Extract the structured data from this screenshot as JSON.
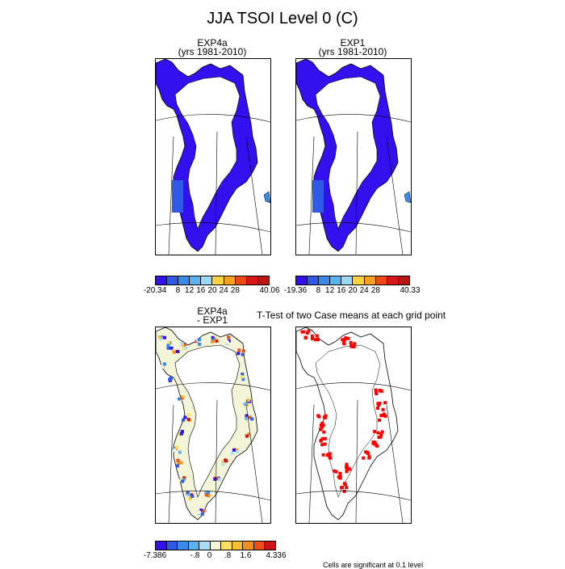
{
  "title": "JJA TSOI Level 0 (C)",
  "panels": {
    "exp4a": {
      "line1": "EXP4a",
      "line2": "(yrs 1981-2010)"
    },
    "exp1": {
      "line1": "EXP1",
      "line2": "(yrs 1981-2010)"
    },
    "diff": {
      "line1": "EXP4a",
      "line2": "- EXP1"
    },
    "ttest": {
      "title": "T-Test of two Case means at each grid point"
    }
  },
  "colorbars": {
    "exp4a": {
      "labels": [
        "-20.34",
        "8",
        "12",
        "16",
        "20",
        "24",
        "28",
        "40.06"
      ]
    },
    "exp1": {
      "labels": [
        "-19.36",
        "8",
        "12",
        "16",
        "20",
        "24",
        "28",
        "40.33"
      ]
    },
    "diff": {
      "labels": [
        "-7.386",
        "-.8",
        "0",
        ".8",
        "1.6",
        "4.336"
      ]
    }
  },
  "colors": {
    "abs_scale": [
      "#3311ee",
      "#2f5ae8",
      "#3a8ae8",
      "#58b4f0",
      "#9ad8f4",
      "#f8d040",
      "#f4a020",
      "#ee4a18",
      "#d81818",
      "#b81414"
    ],
    "diff_scale": [
      "#3311ee",
      "#2f5ae8",
      "#3a8ae8",
      "#58b4f0",
      "#a8def4",
      "#f4f4d8",
      "#f8e060",
      "#f8c030",
      "#f49020",
      "#ee5018",
      "#cc1414"
    ],
    "ice_mask": "#3311ee",
    "significance": "#ff0000"
  },
  "footnote": "Cells are significant at 0.1 level"
}
